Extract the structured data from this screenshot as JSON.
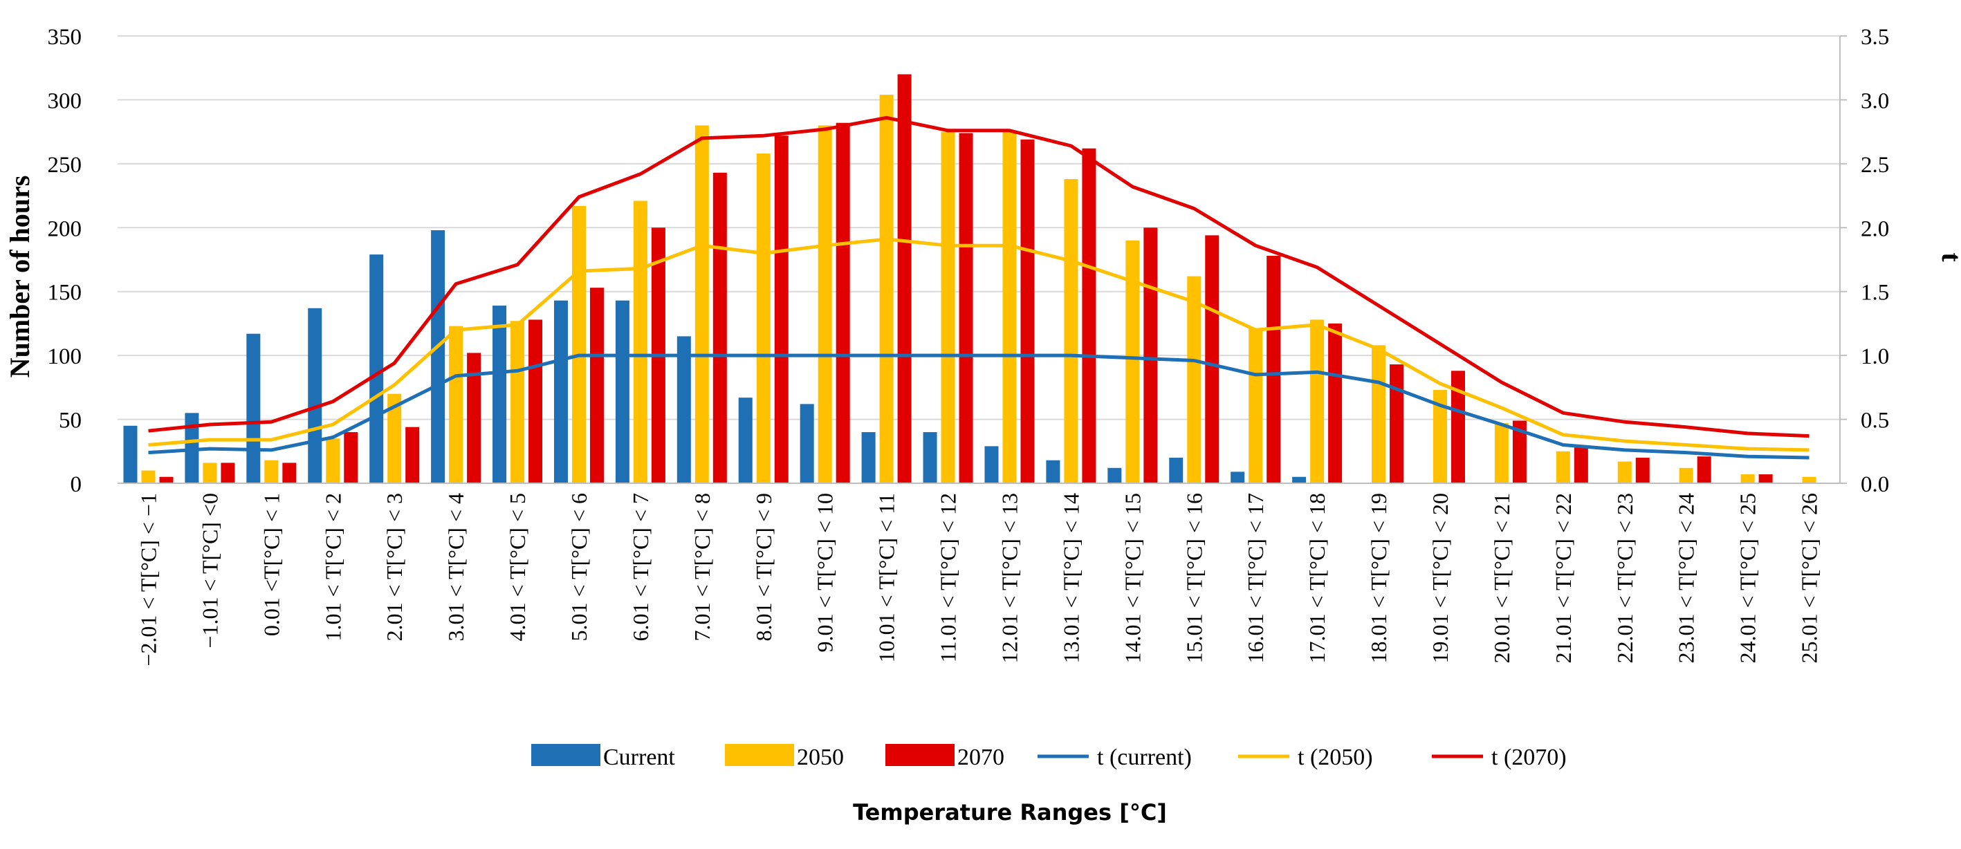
{
  "chart_data": {
    "type": "bar",
    "title": "",
    "xlabel": "Temperature Ranges [°C]",
    "ylabel": "Number of hours",
    "y2label": "t",
    "ylim": [
      0,
      350
    ],
    "y2lim": [
      0,
      3.5
    ],
    "yticks": [
      "0",
      "50",
      "100",
      "150",
      "200",
      "250",
      "300",
      "350"
    ],
    "y2ticks": [
      "0.0",
      "0.5",
      "1.0",
      "1.5",
      "2.0",
      "2.5",
      "3.0",
      "3.5"
    ],
    "gridlines": true,
    "legend_position": "bottom",
    "categories": [
      "−2.01 < T[°C] < −1",
      "−1.01 < T[°C] <0",
      "0.01 <T[°C] < 1",
      "1.01 < T[°C] < 2",
      "2.01 < T[°C] < 3",
      "3.01 < T[°C] < 4",
      "4.01 < T[°C] < 5",
      "5.01 < T[°C] < 6",
      "6.01 < T[°C] < 7",
      "7.01 < T[°C] < 8",
      "8.01 < T[°C] < 9",
      "9.01 < T[°C] < 10",
      "10.01 < T[°C] < 11",
      "11.01 < T[°C] < 12",
      "12.01 < T[°C] < 13",
      "13.01 < T[°C] < 14",
      "14.01 < T[°C] < 15",
      "15.01 < T[°C] < 16",
      "16.01 < T[°C] < 17",
      "17.01 < T[°C] < 18",
      "18.01 < T[°C] < 19",
      "19.01 < T[°C] < 20",
      "20.01 < T[°C] < 21",
      "21.01 < T[°C] < 22",
      "22.01 < T[°C] < 23",
      "23.01 < T[°C] < 24",
      "24.01 < T[°C] < 25",
      "25.01 < T[°C] < 26"
    ],
    "series": [
      {
        "name": "Current",
        "kind": "bar",
        "axis": "left",
        "color": "#1f6fb5",
        "values": [
          45,
          55,
          117,
          137,
          179,
          198,
          139,
          143,
          143,
          115,
          67,
          62,
          40,
          40,
          29,
          18,
          12,
          20,
          9,
          5,
          0,
          0,
          0,
          0,
          0,
          0,
          0,
          0
        ]
      },
      {
        "name": "2050",
        "kind": "bar",
        "axis": "left",
        "color": "#ffc000",
        "values": [
          10,
          16,
          18,
          35,
          70,
          123,
          127,
          217,
          221,
          280,
          258,
          280,
          304,
          275,
          275,
          238,
          190,
          162,
          121,
          128,
          108,
          73,
          47,
          25,
          17,
          12,
          7,
          5
        ]
      },
      {
        "name": "2070",
        "kind": "bar",
        "axis": "left",
        "color": "#e00000",
        "values": [
          5,
          16,
          16,
          40,
          44,
          102,
          128,
          153,
          200,
          243,
          272,
          282,
          320,
          274,
          269,
          262,
          200,
          194,
          178,
          125,
          93,
          88,
          49,
          28,
          20,
          21,
          7,
          0
        ]
      },
      {
        "name": "t (current)",
        "kind": "line",
        "axis": "right",
        "color": "#1f6fb5",
        "values": [
          0.24,
          0.27,
          0.26,
          0.36,
          0.6,
          0.84,
          0.88,
          1.0,
          1.0,
          1.0,
          1.0,
          1.0,
          1.0,
          1.0,
          1.0,
          1.0,
          0.98,
          0.96,
          0.85,
          0.87,
          0.79,
          0.61,
          0.46,
          0.3,
          0.26,
          0.24,
          0.21,
          0.2
        ]
      },
      {
        "name": "t (2050)",
        "kind": "line",
        "axis": "right",
        "color": "#ffc000",
        "values": [
          0.3,
          0.34,
          0.34,
          0.46,
          0.77,
          1.2,
          1.24,
          1.66,
          1.68,
          1.86,
          1.8,
          1.86,
          1.91,
          1.86,
          1.86,
          1.74,
          1.58,
          1.42,
          1.2,
          1.24,
          1.05,
          0.78,
          0.59,
          0.38,
          0.33,
          0.3,
          0.27,
          0.26
        ]
      },
      {
        "name": "t (2070)",
        "kind": "line",
        "axis": "right",
        "color": "#e00000",
        "values": [
          0.41,
          0.46,
          0.48,
          0.64,
          0.94,
          1.56,
          1.71,
          2.24,
          2.42,
          2.7,
          2.72,
          2.77,
          2.86,
          2.76,
          2.76,
          2.64,
          2.32,
          2.15,
          1.86,
          1.69,
          1.39,
          1.09,
          0.79,
          0.55,
          0.48,
          0.44,
          0.39,
          0.37
        ]
      }
    ]
  }
}
